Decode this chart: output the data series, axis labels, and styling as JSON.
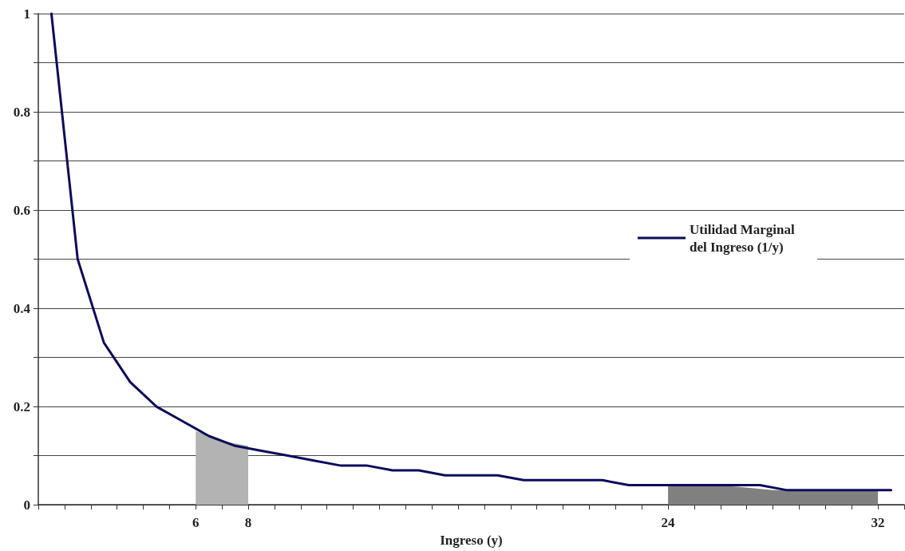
{
  "chart_data": {
    "type": "line",
    "xlabel": "Ingreso (y)",
    "xlim": [
      0,
      33
    ],
    "ylim": [
      0,
      1
    ],
    "xticks": [
      {
        "value": 0,
        "label": null
      },
      {
        "value": 1,
        "label": null
      },
      {
        "value": 2,
        "label": null
      },
      {
        "value": 3,
        "label": null
      },
      {
        "value": 4,
        "label": null
      },
      {
        "value": 5,
        "label": null
      },
      6,
      {
        "value": 7,
        "label": null
      },
      8,
      {
        "value": 9,
        "label": null
      },
      {
        "value": 10,
        "label": null
      },
      {
        "value": 11,
        "label": null
      },
      {
        "value": 12,
        "label": null
      },
      {
        "value": 13,
        "label": null
      },
      {
        "value": 14,
        "label": null
      },
      {
        "value": 15,
        "label": null
      },
      {
        "value": 16,
        "label": null
      },
      {
        "value": 17,
        "label": null
      },
      {
        "value": 18,
        "label": null
      },
      {
        "value": 19,
        "label": null
      },
      {
        "value": 20,
        "label": null
      },
      {
        "value": 21,
        "label": null
      },
      {
        "value": 22,
        "label": null
      },
      {
        "value": 23,
        "label": null
      },
      24,
      {
        "value": 25,
        "label": null
      },
      {
        "value": 26,
        "label": null
      },
      {
        "value": 27,
        "label": null
      },
      {
        "value": 28,
        "label": null
      },
      {
        "value": 29,
        "label": null
      },
      {
        "value": 30,
        "label": null
      },
      {
        "value": 31,
        "label": null
      },
      32,
      {
        "value": 33,
        "label": null
      }
    ],
    "yticks": [
      0,
      {
        "value": 0.1,
        "label": null
      },
      0.2,
      {
        "value": 0.3,
        "label": null
      },
      0.4,
      {
        "value": 0.5,
        "label": null
      },
      0.6,
      {
        "value": 0.7,
        "label": null
      },
      0.8,
      {
        "value": 0.9,
        "label": null
      },
      1
    ],
    "grid": "y",
    "legend": "right",
    "marker": "none",
    "line_style": "solid",
    "series": [
      {
        "type": "area",
        "color": "#b3b3b3",
        "x": [
          6,
          7,
          8
        ],
        "values": [
          0.15,
          0.13,
          0.12
        ]
      },
      {
        "type": "area",
        "color": "#808080",
        "x": [
          24,
          26,
          28,
          30,
          32
        ],
        "values": [
          0.04,
          0.04,
          0.03,
          0.03,
          0.03
        ]
      },
      {
        "type": "line",
        "name": "Utilidad Marginal del Ingreso (1/y)",
        "color": "#0c0c5a",
        "x": [
          0.5,
          1.5,
          2.5,
          3.5,
          4.5,
          5.5,
          6.5,
          7.5,
          8.5,
          9.5,
          10.5,
          11.5,
          12.5,
          13.5,
          14.5,
          15.5,
          16.5,
          17.5,
          18.5,
          19.5,
          20.5,
          21.5,
          22.5,
          23.5,
          24.5,
          25.5,
          26.5,
          27.5,
          28.5,
          29.5,
          30.5,
          31.5,
          32.5
        ],
        "values": [
          1,
          0.5,
          0.33,
          0.25,
          0.2,
          0.17,
          0.14,
          0.12,
          0.11,
          0.1,
          0.09,
          0.08,
          0.08,
          0.07,
          0.07,
          0.06,
          0.06,
          0.06,
          0.05,
          0.05,
          0.05,
          0.05,
          0.04,
          0.04,
          0.04,
          0.04,
          0.04,
          0.04,
          0.03,
          0.03,
          0.03,
          0.03,
          0.03
        ]
      }
    ]
  }
}
